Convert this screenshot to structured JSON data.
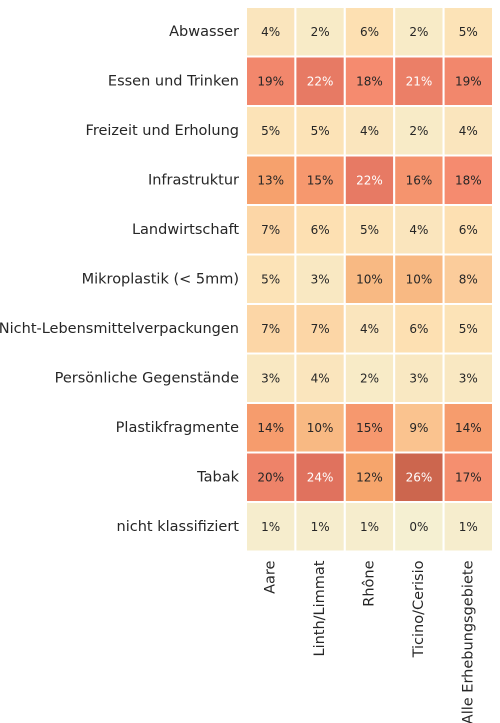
{
  "chart_data": {
    "type": "heatmap",
    "rows": [
      "Abwasser",
      "Essen und Trinken",
      "Freizeit und Erholung",
      "Infrastruktur",
      "Landwirtschaft",
      "Mikroplastik (< 5mm)",
      "Nicht-Lebensmittelverpackungen",
      "Persönliche Gegenstände",
      "Plastikfragmente",
      "Tabak",
      "nicht klassifiziert"
    ],
    "columns": [
      "Aare",
      "Linth/Limmat",
      "Rhône",
      "Ticino/Cerisio",
      "Alle Erhebungsgebiete"
    ],
    "values": [
      [
        4,
        2,
        6,
        2,
        5
      ],
      [
        19,
        22,
        18,
        21,
        19
      ],
      [
        5,
        5,
        4,
        2,
        4
      ],
      [
        13,
        15,
        22,
        16,
        18
      ],
      [
        7,
        6,
        5,
        4,
        6
      ],
      [
        5,
        3,
        10,
        10,
        8
      ],
      [
        7,
        7,
        4,
        6,
        5
      ],
      [
        3,
        4,
        2,
        3,
        3
      ],
      [
        14,
        10,
        15,
        9,
        14
      ],
      [
        20,
        24,
        12,
        26,
        17
      ],
      [
        1,
        1,
        1,
        0,
        1
      ]
    ],
    "cell_labels": [
      [
        "4%",
        "2%",
        "6%",
        "2%",
        "5%"
      ],
      [
        "19%",
        "22%",
        "18%",
        "21%",
        "19%"
      ],
      [
        "5%",
        "5%",
        "4%",
        "2%",
        "4%"
      ],
      [
        "13%",
        "15%",
        "22%",
        "16%",
        "18%"
      ],
      [
        "7%",
        "6%",
        "5%",
        "4%",
        "6%"
      ],
      [
        "5%",
        "3%",
        "10%",
        "10%",
        "8%"
      ],
      [
        "7%",
        "7%",
        "4%",
        "6%",
        "5%"
      ],
      [
        "3%",
        "4%",
        "2%",
        "3%",
        "3%"
      ],
      [
        "14%",
        "10%",
        "15%",
        "9%",
        "14%"
      ],
      [
        "20%",
        "24%",
        "12%",
        "26%",
        "17%"
      ],
      [
        "1%",
        "1%",
        "1%",
        "0%",
        "1%"
      ]
    ],
    "value_unit": "%",
    "value_range": [
      0,
      30
    ],
    "colormap": [
      "#f5f0d2",
      "#fde0b2",
      "#f6a56c",
      "#f58b6f",
      "#e0725e",
      "#a54d2d"
    ],
    "grid_line_color": "#ffffff",
    "colorbar": false
  }
}
